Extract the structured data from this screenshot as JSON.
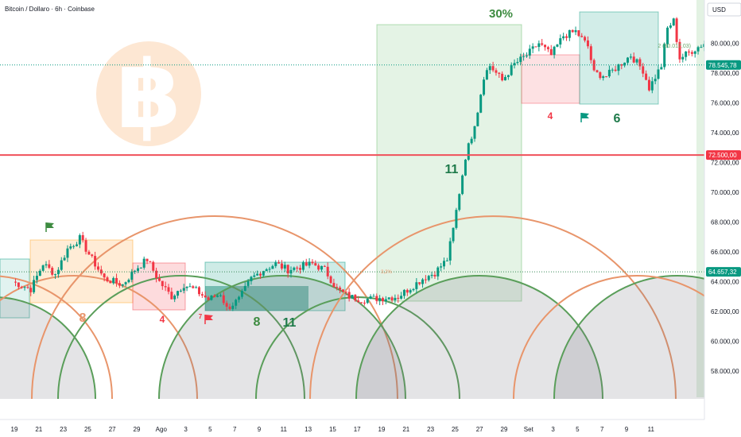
{
  "header": {
    "title": "Bitcoin / Dollaro · 6h · Coinbase",
    "currency": "USD"
  },
  "colors": {
    "up": "#089981",
    "down": "#f23645",
    "orange_arc": "#e8956b",
    "green_arc": "#5a9e5a",
    "red_line": "#f0505a",
    "dotted": "#3a8a5a"
  },
  "chart_data": {
    "type": "candlestick",
    "title": "Bitcoin / Dollaro · 6h · Coinbase",
    "ylim": [
      56000,
      83000
    ],
    "y_ticks": [
      "58.000,00",
      "60.000,00",
      "62.000,00",
      "64.000,00",
      "66.000,00",
      "68.000,00",
      "70.000,00",
      "72.000,00",
      "74.000,00",
      "76.000,00",
      "78.000,00",
      "80.000,00"
    ],
    "x_ticks": [
      "19",
      "21",
      "23",
      "25",
      "27",
      "29",
      "Ago",
      "3",
      "5",
      "7",
      "9",
      "11",
      "13",
      "15",
      "17",
      "19",
      "21",
      "23",
      "25",
      "27",
      "29",
      "Set",
      "3",
      "5",
      "7",
      "9",
      "11"
    ],
    "price_labels": [
      {
        "text": "78.545,78",
        "value": 78546,
        "color": "#089981"
      },
      {
        "text": "72.500,00",
        "value": 72500,
        "color": "#f23645"
      },
      {
        "text": "64.657,32",
        "value": 64657,
        "color": "#089981"
      }
    ],
    "horizontal_line": {
      "value": 72500
    },
    "annotations": {
      "pct": "30%",
      "level": "2 (80.017,03)",
      "mini": "3,2%",
      "cycle_counts": [
        "8",
        "4",
        "7",
        "8",
        "11",
        "11",
        "4",
        "6"
      ]
    },
    "path": [
      [
        0,
        64000
      ],
      [
        6,
        63500
      ],
      [
        10,
        65200
      ],
      [
        14,
        64500
      ],
      [
        18,
        66200
      ],
      [
        22,
        66900
      ],
      [
        26,
        65500
      ],
      [
        30,
        64200
      ],
      [
        36,
        63800
      ],
      [
        40,
        64800
      ],
      [
        44,
        65500
      ],
      [
        48,
        64000
      ],
      [
        52,
        63000
      ],
      [
        56,
        63800
      ],
      [
        60,
        63400
      ],
      [
        64,
        62800
      ],
      [
        68,
        63200
      ],
      [
        70,
        62200
      ],
      [
        74,
        62800
      ],
      [
        78,
        64200
      ],
      [
        82,
        64800
      ],
      [
        86,
        65200
      ],
      [
        90,
        64800
      ],
      [
        94,
        65000
      ],
      [
        98,
        65200
      ],
      [
        102,
        64800
      ],
      [
        106,
        63500
      ],
      [
        110,
        63000
      ],
      [
        114,
        62800
      ],
      [
        120,
        62900
      ],
      [
        126,
        63000
      ],
      [
        130,
        63600
      ],
      [
        134,
        64200
      ],
      [
        138,
        64600
      ],
      [
        142,
        65500
      ],
      [
        144,
        67500
      ],
      [
        146,
        70000
      ],
      [
        148,
        72400
      ],
      [
        150,
        73800
      ],
      [
        152,
        75500
      ],
      [
        154,
        77800
      ],
      [
        156,
        78500
      ],
      [
        160,
        77500
      ],
      [
        164,
        78600
      ],
      [
        168,
        79200
      ],
      [
        172,
        80000
      ],
      [
        176,
        79200
      ],
      [
        180,
        80500
      ],
      [
        184,
        80800
      ],
      [
        188,
        79800
      ],
      [
        190,
        78000
      ],
      [
        194,
        77800
      ],
      [
        198,
        78500
      ],
      [
        202,
        79200
      ],
      [
        206,
        78200
      ],
      [
        208,
        77000
      ],
      [
        212,
        78500
      ],
      [
        214,
        81000
      ],
      [
        216,
        81500
      ],
      [
        218,
        79000
      ],
      [
        222,
        79500
      ],
      [
        226,
        80000
      ],
      [
        230,
        79600
      ],
      [
        234,
        79000
      ],
      [
        238,
        78500
      ],
      [
        240,
        78546
      ]
    ],
    "day_tick_positions": [
      0,
      8,
      16,
      24,
      32,
      40,
      48,
      56,
      64,
      72,
      80,
      88,
      96,
      104,
      112,
      120,
      128,
      136,
      144,
      152,
      160,
      168,
      176,
      184,
      192,
      200,
      208
    ]
  }
}
